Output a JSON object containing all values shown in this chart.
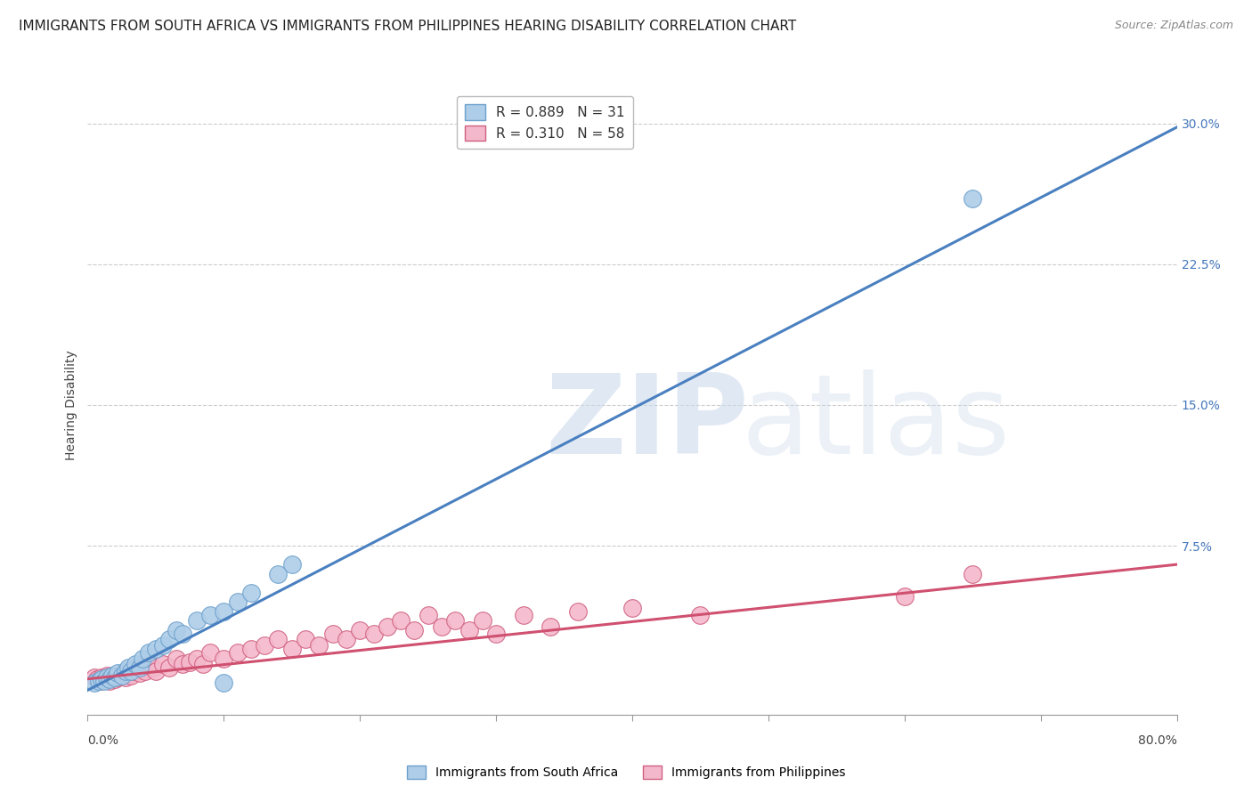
{
  "title": "IMMIGRANTS FROM SOUTH AFRICA VS IMMIGRANTS FROM PHILIPPINES HEARING DISABILITY CORRELATION CHART",
  "source": "Source: ZipAtlas.com",
  "ylabel": "Hearing Disability",
  "yticks": [
    0.0,
    0.075,
    0.15,
    0.225,
    0.3
  ],
  "ytick_labels": [
    "",
    "7.5%",
    "15.0%",
    "22.5%",
    "30.0%"
  ],
  "xlim": [
    0.0,
    0.8
  ],
  "ylim": [
    -0.015,
    0.315
  ],
  "south_africa": {
    "scatter_color": "#aecde8",
    "edge_color": "#6ca0cc",
    "line_color": "#4a80c0",
    "x": [
      0.005,
      0.008,
      0.01,
      0.012,
      0.014,
      0.016,
      0.018,
      0.02,
      0.022,
      0.025,
      0.028,
      0.03,
      0.032,
      0.035,
      0.038,
      0.04,
      0.045,
      0.05,
      0.055,
      0.06,
      0.065,
      0.07,
      0.08,
      0.09,
      0.1,
      0.11,
      0.12,
      0.14,
      0.15,
      0.65,
      0.1
    ],
    "y": [
      0.002,
      0.003,
      0.004,
      0.003,
      0.005,
      0.004,
      0.006,
      0.005,
      0.007,
      0.006,
      0.008,
      0.01,
      0.008,
      0.012,
      0.01,
      0.015,
      0.018,
      0.02,
      0.022,
      0.025,
      0.03,
      0.028,
      0.035,
      0.038,
      0.04,
      0.045,
      0.05,
      0.06,
      0.065,
      0.26,
      0.002
    ]
  },
  "philippines": {
    "scatter_color": "#f4b8cc",
    "edge_color": "#d06080",
    "line_color": "#d05070",
    "x": [
      0.005,
      0.007,
      0.009,
      0.01,
      0.012,
      0.014,
      0.015,
      0.016,
      0.018,
      0.02,
      0.022,
      0.025,
      0.028,
      0.03,
      0.032,
      0.035,
      0.038,
      0.04,
      0.042,
      0.045,
      0.048,
      0.05,
      0.055,
      0.06,
      0.065,
      0.07,
      0.075,
      0.08,
      0.085,
      0.09,
      0.1,
      0.11,
      0.12,
      0.13,
      0.14,
      0.15,
      0.16,
      0.17,
      0.18,
      0.19,
      0.2,
      0.21,
      0.22,
      0.23,
      0.24,
      0.25,
      0.26,
      0.27,
      0.28,
      0.29,
      0.3,
      0.32,
      0.34,
      0.36,
      0.4,
      0.45,
      0.6,
      0.65
    ],
    "y": [
      0.005,
      0.004,
      0.003,
      0.005,
      0.004,
      0.006,
      0.005,
      0.003,
      0.006,
      0.004,
      0.005,
      0.006,
      0.005,
      0.007,
      0.006,
      0.008,
      0.007,
      0.01,
      0.008,
      0.012,
      0.01,
      0.008,
      0.012,
      0.01,
      0.015,
      0.012,
      0.013,
      0.015,
      0.012,
      0.018,
      0.015,
      0.018,
      0.02,
      0.022,
      0.025,
      0.02,
      0.025,
      0.022,
      0.028,
      0.025,
      0.03,
      0.028,
      0.032,
      0.035,
      0.03,
      0.038,
      0.032,
      0.035,
      0.03,
      0.035,
      0.028,
      0.038,
      0.032,
      0.04,
      0.042,
      0.038,
      0.048,
      0.06
    ]
  },
  "sa_line": {
    "x0": 0.0,
    "y0": -0.002,
    "x1": 0.8,
    "y1": 0.298
  },
  "ph_line": {
    "x0": 0.0,
    "y0": 0.004,
    "x1": 0.8,
    "y1": 0.065
  },
  "background_color": "#ffffff",
  "grid_color": "#cccccc",
  "title_fontsize": 11,
  "source_fontsize": 9,
  "legend_top": [
    {
      "label": "R = 0.889   N = 31",
      "fc": "#aecde8",
      "ec": "#6ca0cc"
    },
    {
      "label": "R = 0.310   N = 58",
      "fc": "#f4b8cc",
      "ec": "#d06080"
    }
  ],
  "legend_bottom": [
    {
      "label": "Immigrants from South Africa",
      "fc": "#aecde8",
      "ec": "#6ca0cc"
    },
    {
      "label": "Immigrants from Philippines",
      "fc": "#f4b8cc",
      "ec": "#d06080"
    }
  ]
}
